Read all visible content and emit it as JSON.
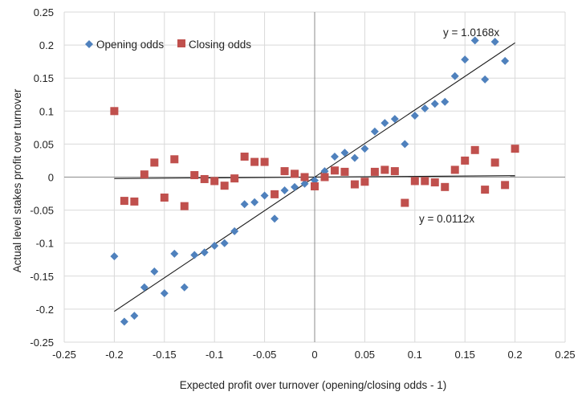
{
  "chart_data": {
    "type": "scatter",
    "title": "",
    "xlabel": "Expected profit over turnover (opening/closing odds - 1)",
    "ylabel": "Actual level stakes profit over turnover",
    "xlim": [
      -0.25,
      0.25
    ],
    "ylim": [
      -0.25,
      0.25
    ],
    "xticks": [
      -0.25,
      -0.2,
      -0.15,
      -0.1,
      -0.05,
      0,
      0.05,
      0.1,
      0.15,
      0.2,
      0.25
    ],
    "yticks": [
      -0.25,
      -0.2,
      -0.15,
      -0.1,
      -0.05,
      0,
      0.05,
      0.1,
      0.15,
      0.2,
      0.25
    ],
    "xtick_labels": [
      "-0.25",
      "-0.2",
      "-0.15",
      "-0.1",
      "-0.05",
      "0",
      "0.05",
      "0.1",
      "0.15",
      "0.2",
      "0.25"
    ],
    "ytick_labels": [
      "-0.25",
      "-0.2",
      "-0.15",
      "-0.1",
      "-0.05",
      "0",
      "0.05",
      "0.1",
      "0.15",
      "0.2",
      "0.25"
    ],
    "grid": true,
    "legend_position": "top-left",
    "series": [
      {
        "name": "Opening odds",
        "marker": "diamond",
        "color": "#4f81bd",
        "x": [
          -0.2,
          -0.19,
          -0.18,
          -0.17,
          -0.16,
          -0.15,
          -0.14,
          -0.13,
          -0.12,
          -0.11,
          -0.1,
          -0.09,
          -0.08,
          -0.07,
          -0.06,
          -0.05,
          -0.04,
          -0.03,
          -0.02,
          -0.01,
          0,
          0.01,
          0.02,
          0.03,
          0.04,
          0.05,
          0.06,
          0.07,
          0.08,
          0.09,
          0.1,
          0.11,
          0.12,
          0.13,
          0.14,
          0.15,
          0.16,
          0.17,
          0.18,
          0.19
        ],
        "y": [
          -0.12,
          -0.219,
          -0.21,
          -0.167,
          -0.143,
          -0.176,
          -0.116,
          -0.167,
          -0.118,
          -0.114,
          -0.104,
          -0.1,
          -0.082,
          -0.041,
          -0.038,
          -0.028,
          -0.063,
          -0.02,
          -0.015,
          -0.01,
          -0.005,
          0.009,
          0.031,
          0.037,
          0.029,
          0.043,
          0.069,
          0.082,
          0.088,
          0.05,
          0.093,
          0.104,
          0.111,
          0.114,
          0.153,
          0.178,
          0.207,
          0.148,
          0.205,
          0.176
        ]
      },
      {
        "name": "Closing odds",
        "marker": "square",
        "color": "#c0504d",
        "x": [
          -0.2,
          -0.19,
          -0.18,
          -0.17,
          -0.16,
          -0.15,
          -0.14,
          -0.13,
          -0.12,
          -0.11,
          -0.1,
          -0.09,
          -0.08,
          -0.07,
          -0.06,
          -0.05,
          -0.04,
          -0.03,
          -0.02,
          -0.01,
          0,
          0.01,
          0.02,
          0.03,
          0.04,
          0.05,
          0.06,
          0.07,
          0.08,
          0.09,
          0.1,
          0.11,
          0.12,
          0.13,
          0.14,
          0.15,
          0.16,
          0.17,
          0.18,
          0.19,
          0.2
        ],
        "y": [
          0.1,
          -0.036,
          -0.037,
          0.004,
          0.022,
          -0.031,
          0.027,
          -0.044,
          0.003,
          -0.003,
          -0.006,
          -0.013,
          -0.002,
          0.031,
          0.023,
          0.023,
          -0.026,
          0.009,
          0.005,
          0.0,
          -0.014,
          0.0,
          0.01,
          0.008,
          -0.011,
          -0.007,
          0.008,
          0.011,
          0.009,
          -0.039,
          -0.006,
          -0.006,
          -0.008,
          -0.015,
          0.011,
          0.025,
          0.041,
          -0.019,
          0.022,
          -0.012,
          0.043
        ]
      }
    ],
    "trendlines": [
      {
        "label": "y = 1.0168x",
        "slope": 1.0168,
        "x_range": [
          -0.2,
          0.2
        ]
      },
      {
        "label": "y = 0.0112x",
        "slope": 0.0112,
        "x_range": [
          -0.2,
          0.2
        ]
      }
    ]
  }
}
